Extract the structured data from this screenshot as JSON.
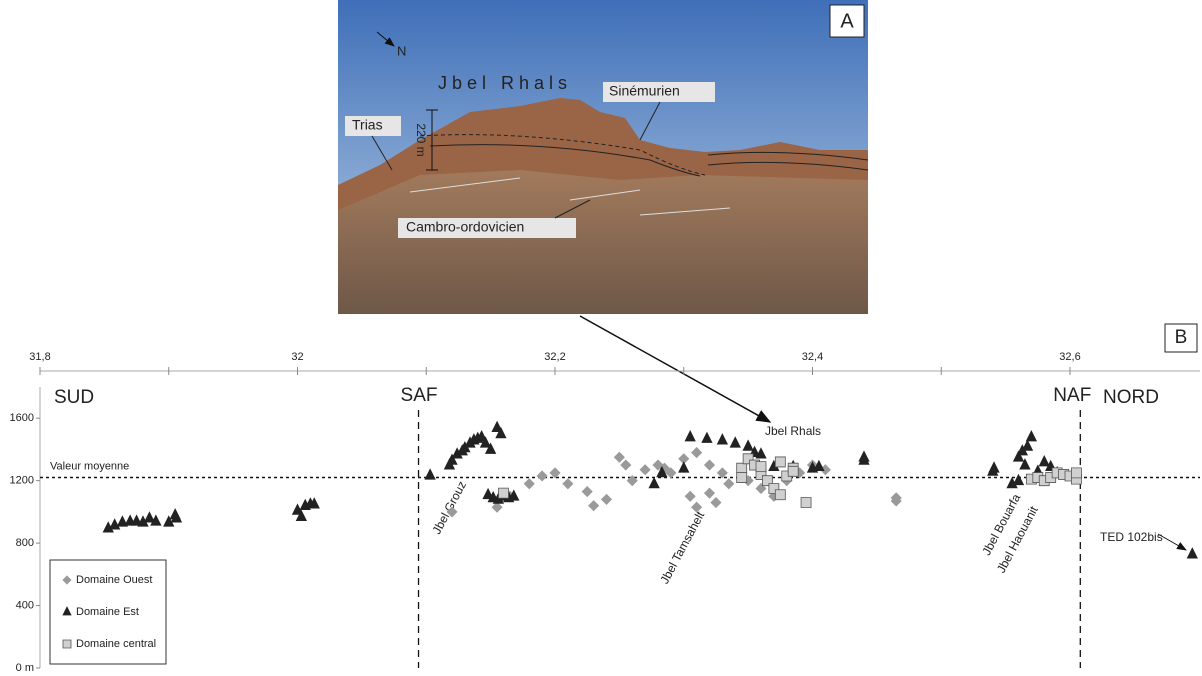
{
  "chart_data": {
    "type": "scatter",
    "xlim": [
      31.8,
      32.7
    ],
    "xticks": [
      {
        "value": 31.8,
        "label": "31,8"
      },
      32,
      {
        "value": 32.2,
        "label": "32,2"
      },
      {
        "value": 32.4,
        "label": "32,4"
      },
      {
        "value": 32.6,
        "label": "32,6"
      }
    ],
    "xticks_minor": [
      31.9,
      32.1,
      32.3,
      32.5
    ],
    "ylim": [
      0,
      1800
    ],
    "yticks": [
      {
        "value": 0,
        "label": "0 m"
      },
      400,
      800,
      1200,
      1600
    ],
    "mean_line": {
      "label": "Valeur moyenne",
      "value": 1220
    },
    "faults": [
      {
        "label": "SAF",
        "x": 32.094
      },
      {
        "label": "NAF",
        "x": 32.608
      }
    ],
    "regions": [
      "SUD",
      "NORD"
    ],
    "site_labels": [
      "Jbel Grouz",
      "Jbel Tamsahelt",
      "Jbel Bouarfa",
      "Jbel Haouanit",
      "TED 102bis",
      "Jbel Rhals"
    ],
    "panel_label": "B",
    "legend_position": "lower left",
    "series": [
      {
        "name": "Domaine Ouest",
        "marker": "diamond",
        "color": "#9a9a9a",
        "x": [
          32.12,
          32.155,
          32.165,
          32.18,
          32.19,
          32.2,
          32.21,
          32.225,
          32.23,
          32.24,
          32.25,
          32.255,
          32.26,
          32.27,
          32.28,
          32.285,
          32.29,
          32.3,
          32.305,
          32.31,
          32.31,
          32.32,
          32.32,
          32.325,
          32.33,
          32.335,
          32.345,
          32.35,
          32.36,
          32.37,
          32.38,
          32.39,
          32.4,
          32.41,
          32.465,
          32.465
        ],
        "y": [
          1000,
          1030,
          1100,
          1180,
          1230,
          1250,
          1180,
          1130,
          1040,
          1080,
          1350,
          1300,
          1200,
          1270,
          1300,
          1280,
          1250,
          1340,
          1100,
          1380,
          1030,
          1300,
          1120,
          1060,
          1250,
          1180,
          1220,
          1200,
          1150,
          1100,
          1200,
          1250,
          1300,
          1270,
          1090,
          1070
        ]
      },
      {
        "name": "Domaine Est",
        "marker": "triangle",
        "color": "#222222",
        "x": [
          31.853,
          31.858,
          31.864,
          31.87,
          31.875,
          31.88,
          31.885,
          31.89,
          31.9,
          31.905,
          31.906,
          32.0,
          32.003,
          32.006,
          32.01,
          32.013,
          32.103,
          32.118,
          32.12,
          32.124,
          32.128,
          32.13,
          32.134,
          32.137,
          32.14,
          32.143,
          32.146,
          32.15,
          32.155,
          32.158,
          32.148,
          32.152,
          32.156,
          32.16,
          32.164,
          32.168,
          32.277,
          32.283,
          32.3,
          32.305,
          32.318,
          32.33,
          32.34,
          32.35,
          32.355,
          32.36,
          32.37,
          32.385,
          32.4,
          32.405,
          32.44,
          32.44,
          32.54,
          32.541,
          32.555,
          32.56,
          32.56,
          32.563,
          32.565,
          32.567,
          32.57,
          32.575,
          32.58,
          32.585,
          32.59,
          32.695
        ],
        "y": [
          896,
          915,
          934,
          940,
          940,
          934,
          960,
          940,
          934,
          980,
          960,
          1010,
          970,
          1040,
          1050,
          1050,
          1235,
          1300,
          1330,
          1370,
          1390,
          1410,
          1440,
          1460,
          1470,
          1480,
          1440,
          1400,
          1540,
          1500,
          1110,
          1090,
          1080,
          1100,
          1090,
          1100,
          1180,
          1250,
          1280,
          1480,
          1470,
          1460,
          1440,
          1420,
          1380,
          1370,
          1290,
          1290,
          1280,
          1290,
          1350,
          1330,
          1260,
          1280,
          1180,
          1350,
          1200,
          1390,
          1300,
          1420,
          1480,
          1260,
          1320,
          1290,
          1250,
          730
        ]
      },
      {
        "name": "Domaine central",
        "marker": "square",
        "color": "#d0d0d0",
        "x": [
          32.16,
          32.345,
          32.345,
          32.35,
          32.355,
          32.36,
          32.36,
          32.365,
          32.37,
          32.375,
          32.375,
          32.38,
          32.385,
          32.385,
          32.395,
          32.57,
          32.575,
          32.58,
          32.585,
          32.59,
          32.595,
          32.6,
          32.605,
          32.605
        ],
        "y": [
          1120,
          1280,
          1220,
          1340,
          1300,
          1240,
          1290,
          1200,
          1150,
          1110,
          1320,
          1230,
          1280,
          1260,
          1060,
          1210,
          1220,
          1200,
          1220,
          1250,
          1240,
          1230,
          1210,
          1250
        ]
      }
    ]
  },
  "photo": {
    "panel_label": "A",
    "north": "N",
    "title": "Jbel Rhals",
    "labels": [
      "Sinémurien",
      "Trias",
      "220 m",
      "Cambro-ordovicien"
    ]
  }
}
